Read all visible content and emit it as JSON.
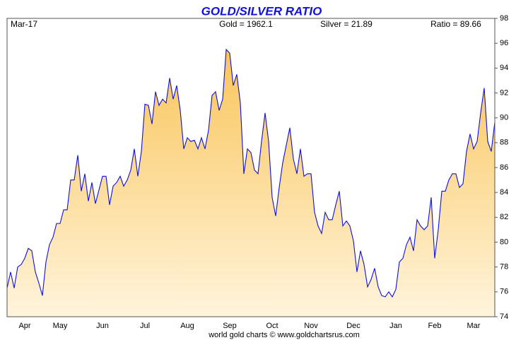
{
  "chart_data": {
    "type": "area",
    "title": "GOLD/SILVER RATIO",
    "date_label": "Mar-17",
    "annotations": [
      "Gold = 1962.1",
      "Silver = 21.89",
      "Ratio = 89.66"
    ],
    "source": "world gold charts © www.goldchartsrus.com",
    "categories": [
      null,
      null,
      null,
      null,
      null,
      "Apr",
      null,
      null,
      null,
      null,
      null,
      null,
      null,
      null,
      null,
      "May",
      null,
      null,
      null,
      null,
      null,
      null,
      null,
      null,
      null,
      null,
      null,
      "Jun",
      null,
      null,
      null,
      null,
      null,
      null,
      null,
      null,
      null,
      null,
      null,
      "Jul",
      null,
      null,
      null,
      null,
      null,
      null,
      null,
      null,
      null,
      null,
      null,
      "Aug",
      null,
      null,
      null,
      null,
      null,
      null,
      null,
      null,
      null,
      null,
      null,
      "Sep",
      null,
      null,
      null,
      null,
      null,
      null,
      null,
      null,
      null,
      null,
      null,
      "Oct",
      null,
      null,
      null,
      null,
      null,
      null,
      null,
      null,
      null,
      null,
      "Nov",
      null,
      null,
      null,
      null,
      null,
      null,
      null,
      null,
      null,
      null,
      null,
      "Dec",
      null,
      null,
      null,
      null,
      null,
      null,
      null,
      null,
      null,
      null,
      null,
      "Jan",
      null,
      null,
      null,
      null,
      null,
      null,
      null,
      null,
      null,
      null,
      "Feb",
      null,
      null,
      null,
      null,
      null,
      null,
      null,
      null,
      null,
      null,
      "Mar",
      null,
      null,
      null,
      null,
      null,
      null
    ],
    "series": [
      {
        "name": "Ratio",
        "color": "#1010e0",
        "values": [
          76.3,
          77.6,
          76.3,
          78.0,
          78.2,
          78.7,
          79.5,
          79.3,
          77.6,
          76.7,
          75.7,
          78.4,
          79.8,
          80.4,
          81.5,
          81.5,
          82.6,
          82.6,
          85.0,
          85.0,
          87.0,
          84.1,
          85.5,
          83.3,
          84.8,
          83.1,
          84.2,
          85.3,
          85.3,
          83.0,
          84.5,
          84.8,
          85.3,
          84.5,
          85.0,
          85.8,
          87.5,
          85.3,
          87.3,
          91.1,
          91.0,
          89.5,
          92.1,
          91.0,
          91.5,
          91.2,
          93.2,
          91.5,
          92.6,
          90.6,
          87.5,
          88.4,
          88.1,
          88.2,
          87.5,
          88.4,
          87.5,
          89.0,
          91.8,
          92.1,
          90.6,
          91.5,
          95.5,
          95.2,
          92.6,
          93.5,
          91.2,
          85.5,
          87.5,
          87.2,
          85.8,
          85.5,
          88.1,
          90.4,
          88.1,
          83.6,
          82.1,
          84.4,
          86.4,
          87.8,
          89.2,
          86.7,
          85.5,
          87.5,
          85.3,
          85.5,
          85.5,
          82.4,
          81.3,
          80.7,
          82.4,
          81.8,
          81.8,
          83.0,
          84.1,
          81.3,
          81.7,
          81.3,
          80.1,
          77.6,
          79.3,
          78.2,
          76.4,
          77.0,
          77.9,
          76.4,
          75.7,
          75.6,
          76.0,
          75.6,
          76.2,
          78.4,
          78.7,
          79.8,
          80.4,
          79.3,
          81.8,
          81.3,
          81.0,
          81.3,
          83.6,
          78.7,
          81.0,
          84.1,
          84.1,
          85.0,
          85.5,
          85.5,
          84.4,
          84.7,
          87.3,
          88.7,
          87.5,
          88.1,
          90.4,
          92.4,
          88.1,
          87.3,
          89.66
        ]
      }
    ],
    "ylim": [
      74,
      98
    ],
    "yticks": [
      74,
      76,
      78,
      80,
      82,
      84,
      86,
      88,
      90,
      92,
      94,
      96,
      98
    ],
    "fill_top": "#f9c55a",
    "fill_bottom": "#fff4dc"
  }
}
